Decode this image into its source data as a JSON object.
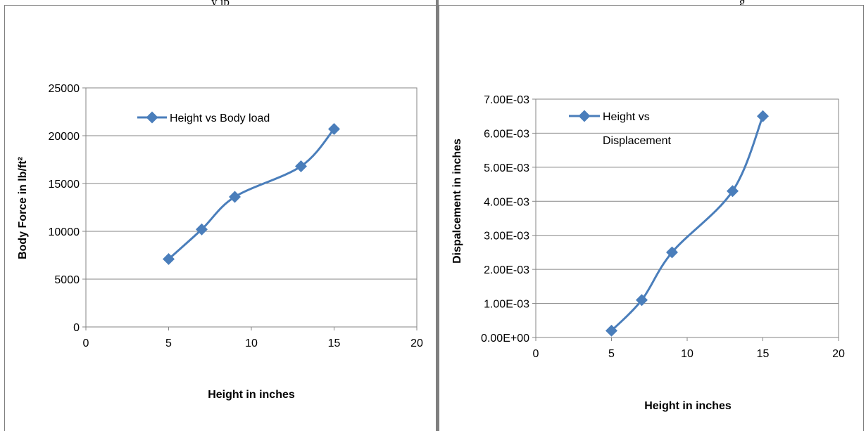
{
  "page_header": {
    "fragment_left": "y   ip",
    "fragment_right": "g"
  },
  "chart_data": [
    {
      "type": "line",
      "title": "",
      "xlabel": "Height in inches",
      "ylabel": "Body Force in lb/ft²",
      "xlim": [
        0,
        20
      ],
      "ylim": [
        0,
        25000
      ],
      "x_ticks": [
        "0",
        "5",
        "10",
        "15",
        "20"
      ],
      "y_ticks": [
        "0",
        "5000",
        "10000",
        "15000",
        "20000",
        "25000"
      ],
      "grid": "horizontal",
      "legend": "top-left",
      "color": "#4a7ebb",
      "series": [
        {
          "name": "Height vs Body load",
          "x": [
            5,
            7,
            9,
            13,
            15
          ],
          "y": [
            7100,
            10200,
            13600,
            16800,
            20700
          ]
        }
      ]
    },
    {
      "type": "line",
      "title": "",
      "xlabel": "Height in inches",
      "ylabel": "Dispalcement in inches",
      "xlim": [
        0,
        20
      ],
      "ylim": [
        0,
        0.007
      ],
      "x_ticks": [
        "0",
        "5",
        "10",
        "15",
        "20"
      ],
      "y_ticks": [
        "0.00E+00",
        "1.00E-03",
        "2.00E-03",
        "3.00E-03",
        "4.00E-03",
        "5.00E-03",
        "6.00E-03",
        "7.00E-03"
      ],
      "grid": "horizontal",
      "legend": "top-left",
      "color": "#4a7ebb",
      "series": [
        {
          "name_lines": [
            "Height vs",
            "Displacement"
          ],
          "x": [
            5,
            7,
            9,
            13,
            15
          ],
          "y": [
            0.0002,
            0.0011,
            0.0025,
            0.0043,
            0.0065
          ]
        }
      ]
    }
  ]
}
